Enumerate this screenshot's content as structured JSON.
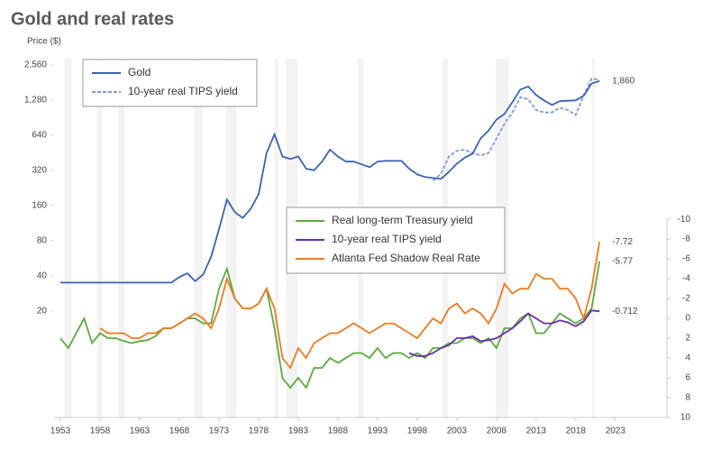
{
  "chart_data": {
    "type": "line",
    "title": "Gold and real rates",
    "y_label": "Price ($)",
    "log_y": true,
    "x": [
      1953,
      1954,
      1955,
      1956,
      1957,
      1958,
      1959,
      1960,
      1961,
      1962,
      1963,
      1964,
      1965,
      1966,
      1967,
      1968,
      1969,
      1970,
      1971,
      1972,
      1973,
      1974,
      1975,
      1976,
      1977,
      1978,
      1979,
      1980,
      1981,
      1982,
      1983,
      1984,
      1985,
      1986,
      1987,
      1988,
      1989,
      1990,
      1991,
      1992,
      1993,
      1994,
      1995,
      1996,
      1997,
      1998,
      1999,
      2000,
      2001,
      2002,
      2003,
      2004,
      2005,
      2006,
      2007,
      2008,
      2009,
      2010,
      2011,
      2012,
      2013,
      2014,
      2015,
      2016,
      2017,
      2018,
      2019,
      2020,
      2021
    ],
    "xlim": [
      1952.2,
      2029.5
    ],
    "xticks": [
      1953,
      1958,
      1963,
      1968,
      1973,
      1978,
      1983,
      1988,
      1993,
      1998,
      2003,
      2008,
      2013,
      2018,
      2023
    ],
    "ylim": [
      2.45,
      2890
    ],
    "yticks": [
      20,
      40,
      80,
      160,
      320,
      640,
      {
        "value": 1280,
        "label": "1,280"
      },
      {
        "value": 2560,
        "label": "2,560"
      }
    ],
    "y2lim": [
      10,
      -26.2
    ],
    "y2ticks": [
      -10,
      -8,
      -6,
      -4,
      -2,
      0,
      2,
      4,
      6,
      8,
      10
    ],
    "recessions": [
      [
        1953.5,
        1954.4
      ],
      [
        1957.6,
        1958.3
      ],
      [
        1960.3,
        1961.1
      ],
      [
        1969.9,
        1970.9
      ],
      [
        1973.9,
        1975.2
      ],
      [
        1980.0,
        1980.5
      ],
      [
        1981.5,
        1982.9
      ],
      [
        1990.5,
        1991.2
      ],
      [
        2001.2,
        2001.9
      ],
      [
        2007.9,
        2009.5
      ],
      [
        2020.1,
        2020.4
      ]
    ],
    "series": [
      {
        "name": "Gold",
        "color": "#3a62b5",
        "dash": false,
        "legend": 0,
        "values": [
          35,
          35,
          35,
          35,
          35,
          35,
          35,
          35,
          35,
          35,
          35,
          35,
          35,
          35,
          35,
          39,
          42,
          36,
          41,
          58,
          100,
          180,
          140,
          125,
          150,
          200,
          450,
          650,
          420,
          400,
          420,
          330,
          320,
          380,
          480,
          420,
          380,
          380,
          360,
          340,
          380,
          385,
          385,
          385,
          330,
          295,
          280,
          275,
          270,
          310,
          365,
          410,
          445,
          600,
          700,
          870,
          970,
          1225,
          1570,
          1670,
          1410,
          1270,
          1160,
          1250,
          1260,
          1270,
          1390,
          1770,
          1860
        ],
        "value_labels": [
          null,
          null,
          null,
          null,
          null,
          null,
          null,
          null,
          null,
          null,
          null,
          null,
          null,
          null,
          null,
          null,
          null,
          null,
          null,
          null,
          null,
          null,
          null,
          null,
          null,
          null,
          null,
          null,
          null,
          null,
          null,
          null,
          null,
          null,
          null,
          null,
          null,
          null,
          null,
          null,
          null,
          null,
          null,
          null,
          null,
          null,
          null,
          null,
          null,
          null,
          null,
          null,
          null,
          null,
          null,
          null,
          null,
          null,
          null,
          null,
          null,
          null,
          null,
          null,
          null,
          null,
          null,
          null,
          "1,860"
        ]
      },
      {
        "name": "10-year real TIPS yield",
        "color": "#7b9ed8",
        "dash": true,
        "legend": 0,
        "values": [
          null,
          null,
          null,
          null,
          null,
          null,
          null,
          null,
          null,
          null,
          null,
          null,
          null,
          null,
          null,
          null,
          null,
          null,
          null,
          null,
          null,
          null,
          null,
          null,
          null,
          null,
          null,
          null,
          null,
          null,
          null,
          null,
          null,
          null,
          null,
          null,
          null,
          null,
          null,
          null,
          null,
          null,
          null,
          null,
          null,
          null,
          null,
          260,
          300,
          420,
          470,
          480,
          450,
          430,
          450,
          600,
          800,
          1000,
          1350,
          1300,
          1050,
          1000,
          1000,
          1100,
          1050,
          950,
          1400,
          1950,
          1900
        ]
      },
      {
        "name": "Real long-term Treasury yield",
        "color": "#5aaa3c",
        "dash": false,
        "legend": 1,
        "axis": "y2",
        "values": [
          2,
          3,
          1.5,
          0,
          2.5,
          1.5,
          2,
          2,
          2.3,
          2.5,
          2.3,
          2.2,
          1.8,
          1,
          1,
          0.5,
          0,
          0,
          0.5,
          0.5,
          -3,
          -5,
          -2,
          -1,
          -1,
          -1.5,
          -3,
          1,
          6,
          7,
          6,
          7,
          5,
          5,
          4,
          4.5,
          4,
          3.5,
          3.5,
          4,
          3,
          4,
          3.5,
          3.5,
          4,
          3.5,
          4,
          3,
          3,
          2.5,
          2.5,
          2,
          2,
          2.5,
          2,
          3,
          1,
          1,
          0,
          -0.5,
          1.5,
          1.5,
          0.5,
          -0.5,
          0,
          0.5,
          0,
          -1,
          -5.77
        ]
      },
      {
        "name": "10-year real TIPS yield",
        "color": "#6a2da8",
        "dash": false,
        "legend": 1,
        "axis": "y2",
        "values": [
          null,
          null,
          null,
          null,
          null,
          null,
          null,
          null,
          null,
          null,
          null,
          null,
          null,
          null,
          null,
          null,
          null,
          null,
          null,
          null,
          null,
          null,
          null,
          null,
          null,
          null,
          null,
          null,
          null,
          null,
          null,
          null,
          null,
          null,
          null,
          null,
          null,
          null,
          null,
          null,
          null,
          null,
          null,
          null,
          3.5,
          3.8,
          3.8,
          3.5,
          3,
          2.7,
          2,
          2,
          1.8,
          2.3,
          2.2,
          2,
          1.5,
          1,
          0.3,
          -0.5,
          0,
          0.5,
          0.5,
          0.2,
          0.4,
          0.8,
          0.3,
          -0.8,
          -0.712
        ]
      },
      {
        "name": "Atlanta Fed Shadow Real Rate",
        "color": "#ef7a1f",
        "dash": false,
        "legend": 1,
        "axis": "y2",
        "values": [
          null,
          null,
          null,
          null,
          null,
          1,
          1.5,
          1.5,
          1.5,
          2,
          2,
          1.5,
          1.5,
          1,
          1,
          0.5,
          0,
          -0.5,
          0,
          1,
          -1,
          -4,
          -2,
          -1,
          -1,
          -1.5,
          -3,
          -1,
          4,
          5,
          3,
          4,
          2.5,
          2,
          1.5,
          1.5,
          1,
          0.5,
          1,
          1.5,
          1,
          0.5,
          0.5,
          1,
          1.5,
          2,
          1,
          0,
          0.5,
          -1,
          -1.5,
          -0.5,
          -1,
          -0.5,
          0.5,
          -1,
          -3.5,
          -2.5,
          -3,
          -3,
          -4.5,
          -4,
          -4,
          -3,
          -3,
          -2,
          0,
          -3,
          -7.72
        ]
      }
    ]
  }
}
